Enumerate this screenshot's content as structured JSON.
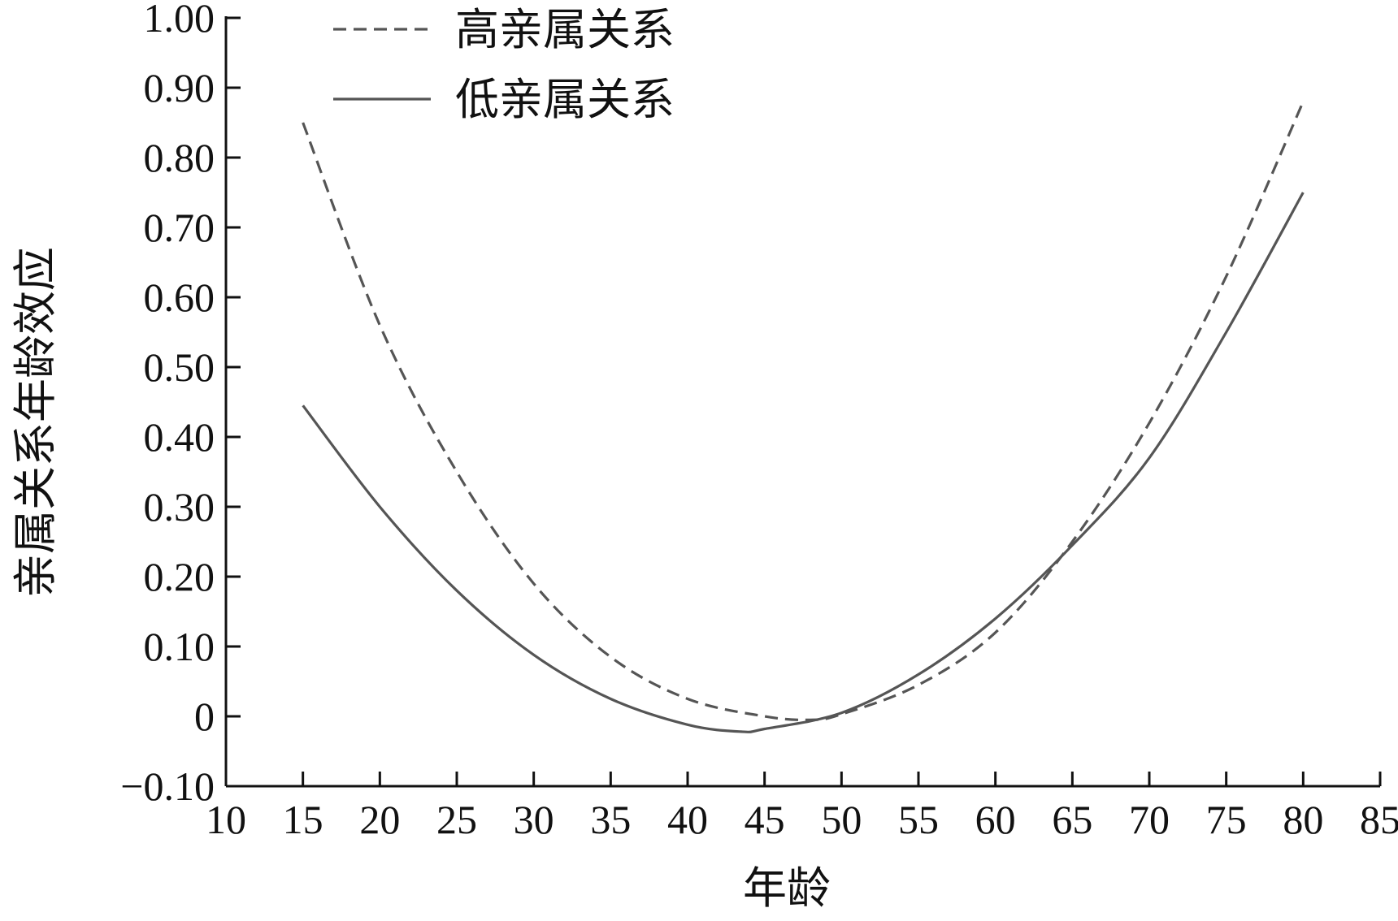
{
  "chart_data": {
    "type": "line",
    "title": "",
    "xlabel": "年龄",
    "ylabel": "亲属关系年龄效应",
    "xlim": [
      10,
      85
    ],
    "ylim": [
      -0.1,
      1.0
    ],
    "x_ticks": [
      "10",
      "15",
      "20",
      "25",
      "30",
      "35",
      "40",
      "45",
      "50",
      "55",
      "60",
      "65",
      "70",
      "75",
      "80",
      "85"
    ],
    "y_ticks": [
      "1.00",
      "0.90",
      "0.80",
      "0.70",
      "0.60",
      "0.50",
      "0.40",
      "0.30",
      "0.20",
      "0.10",
      "0",
      "−0.10"
    ],
    "legend_position": "top-left",
    "grid": false,
    "series": [
      {
        "name": "高亲属关系",
        "style": "dashed",
        "color": "#555555",
        "x": [
          15,
          20,
          25,
          30,
          35,
          40,
          45,
          48,
          50,
          55,
          60,
          65,
          70,
          75,
          80
        ],
        "y": [
          0.85,
          0.56,
          0.35,
          0.19,
          0.085,
          0.025,
          0.0,
          -0.005,
          0.003,
          0.045,
          0.12,
          0.25,
          0.42,
          0.63,
          0.88
        ]
      },
      {
        "name": "低亲属关系",
        "style": "solid",
        "color": "#555555",
        "x": [
          15,
          20,
          25,
          30,
          35,
          40,
          43.5,
          45,
          50,
          55,
          60,
          65,
          70,
          75,
          80
        ],
        "y": [
          0.445,
          0.3,
          0.18,
          0.088,
          0.025,
          -0.012,
          -0.022,
          -0.018,
          0.005,
          0.06,
          0.14,
          0.245,
          0.37,
          0.55,
          0.75
        ]
      }
    ]
  }
}
